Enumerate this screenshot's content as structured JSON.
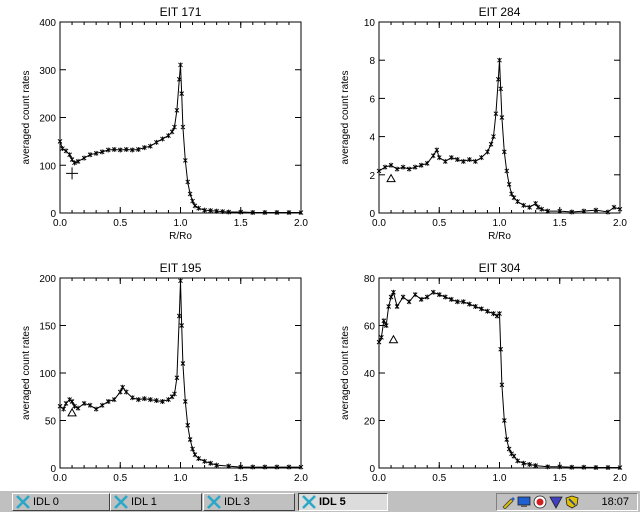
{
  "chart_data": [
    {
      "type": "line",
      "title": "EIT 171",
      "xlabel": "R/Ro",
      "ylabel": "averaged count rates",
      "xlim": [
        0.0,
        2.0
      ],
      "ylim": [
        0,
        400
      ],
      "xticks": [
        "0.0",
        "0.5",
        "1.0",
        "1.5",
        "2.0"
      ],
      "yticks": [
        "0",
        "100",
        "200",
        "300",
        "400"
      ],
      "marker_symbol": "plus",
      "marker_point": [
        0.1,
        83
      ],
      "series": [
        {
          "x": [
            0.0,
            0.02,
            0.05,
            0.08,
            0.1,
            0.12,
            0.15,
            0.2,
            0.25,
            0.3,
            0.35,
            0.4,
            0.45,
            0.5,
            0.55,
            0.6,
            0.65,
            0.7,
            0.75,
            0.8,
            0.85,
            0.9,
            0.93,
            0.95,
            0.97,
            0.99,
            1.0,
            1.01,
            1.02,
            1.04,
            1.06,
            1.08,
            1.1,
            1.12,
            1.15,
            1.2,
            1.25,
            1.3,
            1.35,
            1.4,
            1.5,
            1.6,
            1.7,
            1.8,
            1.9,
            2.0
          ],
          "y": [
            150,
            135,
            130,
            122,
            112,
            105,
            108,
            115,
            122,
            125,
            128,
            132,
            133,
            132,
            133,
            132,
            133,
            137,
            140,
            148,
            155,
            162,
            170,
            180,
            215,
            280,
            310,
            250,
            180,
            110,
            65,
            40,
            25,
            15,
            10,
            6,
            5,
            4,
            3,
            2,
            2,
            1,
            1,
            1,
            1,
            1
          ]
        }
      ]
    },
    {
      "type": "line",
      "title": "EIT 284",
      "xlabel": "R/Ro",
      "ylabel": "averaged count rates",
      "xlim": [
        0.0,
        2.0
      ],
      "ylim": [
        0,
        10
      ],
      "xticks": [
        "0.0",
        "0.5",
        "1.0",
        "1.5",
        "2.0"
      ],
      "yticks": [
        "0",
        "2",
        "4",
        "6",
        "8",
        "10"
      ],
      "marker_symbol": "triangle",
      "marker_point": [
        0.1,
        1.8
      ],
      "series": [
        {
          "x": [
            0.0,
            0.05,
            0.1,
            0.15,
            0.2,
            0.25,
            0.3,
            0.35,
            0.4,
            0.45,
            0.48,
            0.5,
            0.55,
            0.6,
            0.65,
            0.7,
            0.75,
            0.8,
            0.85,
            0.9,
            0.93,
            0.95,
            0.97,
            0.99,
            1.0,
            1.01,
            1.02,
            1.04,
            1.06,
            1.08,
            1.1,
            1.12,
            1.15,
            1.2,
            1.25,
            1.3,
            1.32,
            1.35,
            1.4,
            1.5,
            1.6,
            1.7,
            1.8,
            1.9,
            1.95,
            2.0
          ],
          "y": [
            2.2,
            2.4,
            2.5,
            2.3,
            2.4,
            2.3,
            2.4,
            2.5,
            2.6,
            3.0,
            3.3,
            2.9,
            2.7,
            2.9,
            2.8,
            2.7,
            2.8,
            2.7,
            2.9,
            3.2,
            3.6,
            4.0,
            5.2,
            7.0,
            8.0,
            6.5,
            5.0,
            3.2,
            2.2,
            1.5,
            1.0,
            0.8,
            0.6,
            0.4,
            0.3,
            0.5,
            0.3,
            0.2,
            0.1,
            0.1,
            0.05,
            0.1,
            0.15,
            0.05,
            0.3,
            0.2
          ]
        }
      ]
    },
    {
      "type": "line",
      "title": "EIT 195",
      "xlabel": "",
      "ylabel": "averaged count rates",
      "xlim": [
        0.0,
        2.0
      ],
      "ylim": [
        0,
        200
      ],
      "xticks": [
        "0.0",
        "0.5",
        "1.0",
        "1.5",
        "2.0"
      ],
      "yticks": [
        "0",
        "50",
        "100",
        "150",
        "200"
      ],
      "marker_symbol": "triangle",
      "marker_point": [
        0.1,
        58
      ],
      "series": [
        {
          "x": [
            0.0,
            0.03,
            0.05,
            0.08,
            0.1,
            0.12,
            0.15,
            0.2,
            0.25,
            0.3,
            0.35,
            0.4,
            0.45,
            0.5,
            0.52,
            0.55,
            0.6,
            0.65,
            0.7,
            0.75,
            0.8,
            0.85,
            0.9,
            0.93,
            0.95,
            0.97,
            0.99,
            1.0,
            1.01,
            1.02,
            1.04,
            1.06,
            1.08,
            1.1,
            1.12,
            1.15,
            1.2,
            1.25,
            1.3,
            1.4,
            1.5,
            1.6,
            1.7,
            1.8,
            1.9,
            2.0
          ],
          "y": [
            65,
            62,
            68,
            72,
            70,
            65,
            63,
            68,
            66,
            62,
            66,
            70,
            72,
            80,
            85,
            80,
            74,
            72,
            73,
            72,
            71,
            70,
            72,
            75,
            78,
            95,
            160,
            197,
            150,
            110,
            70,
            45,
            30,
            20,
            14,
            10,
            7,
            5,
            3,
            2,
            1,
            1,
            1,
            1,
            1,
            1
          ]
        }
      ]
    },
    {
      "type": "line",
      "title": "EIT 304",
      "xlabel": "",
      "ylabel": "averaged count rates",
      "xlim": [
        0.0,
        2.0
      ],
      "ylim": [
        0,
        80
      ],
      "xticks": [
        "0.0",
        "0.5",
        "1.0",
        "1.5",
        "2.0"
      ],
      "yticks": [
        "0",
        "20",
        "40",
        "60",
        "80"
      ],
      "marker_symbol": "triangle",
      "marker_point": [
        0.12,
        54
      ],
      "series": [
        {
          "x": [
            0.0,
            0.02,
            0.04,
            0.06,
            0.08,
            0.1,
            0.12,
            0.15,
            0.2,
            0.25,
            0.3,
            0.35,
            0.4,
            0.45,
            0.5,
            0.55,
            0.6,
            0.65,
            0.7,
            0.75,
            0.8,
            0.85,
            0.9,
            0.95,
            0.98,
            1.0,
            1.01,
            1.02,
            1.04,
            1.06,
            1.08,
            1.1,
            1.12,
            1.15,
            1.2,
            1.25,
            1.3,
            1.4,
            1.5,
            1.6,
            1.7,
            1.8,
            1.9,
            2.0
          ],
          "y": [
            53,
            55,
            62,
            60,
            68,
            72,
            74,
            68,
            72,
            70,
            73,
            71,
            72,
            74,
            73,
            72,
            71,
            70,
            70,
            69,
            68,
            67,
            66,
            65,
            64,
            65,
            50,
            35,
            20,
            12,
            8,
            6,
            5,
            3,
            2,
            1.5,
            1,
            0.5,
            0.5,
            0.3,
            0.3,
            0.2,
            0.2,
            0.2
          ]
        }
      ]
    }
  ],
  "taskbar": {
    "buttons": [
      {
        "label": "IDL 0"
      },
      {
        "label": "IDL 1"
      },
      {
        "label": "IDL 3"
      },
      {
        "label": "IDL 5"
      }
    ],
    "clock": "18:07"
  }
}
